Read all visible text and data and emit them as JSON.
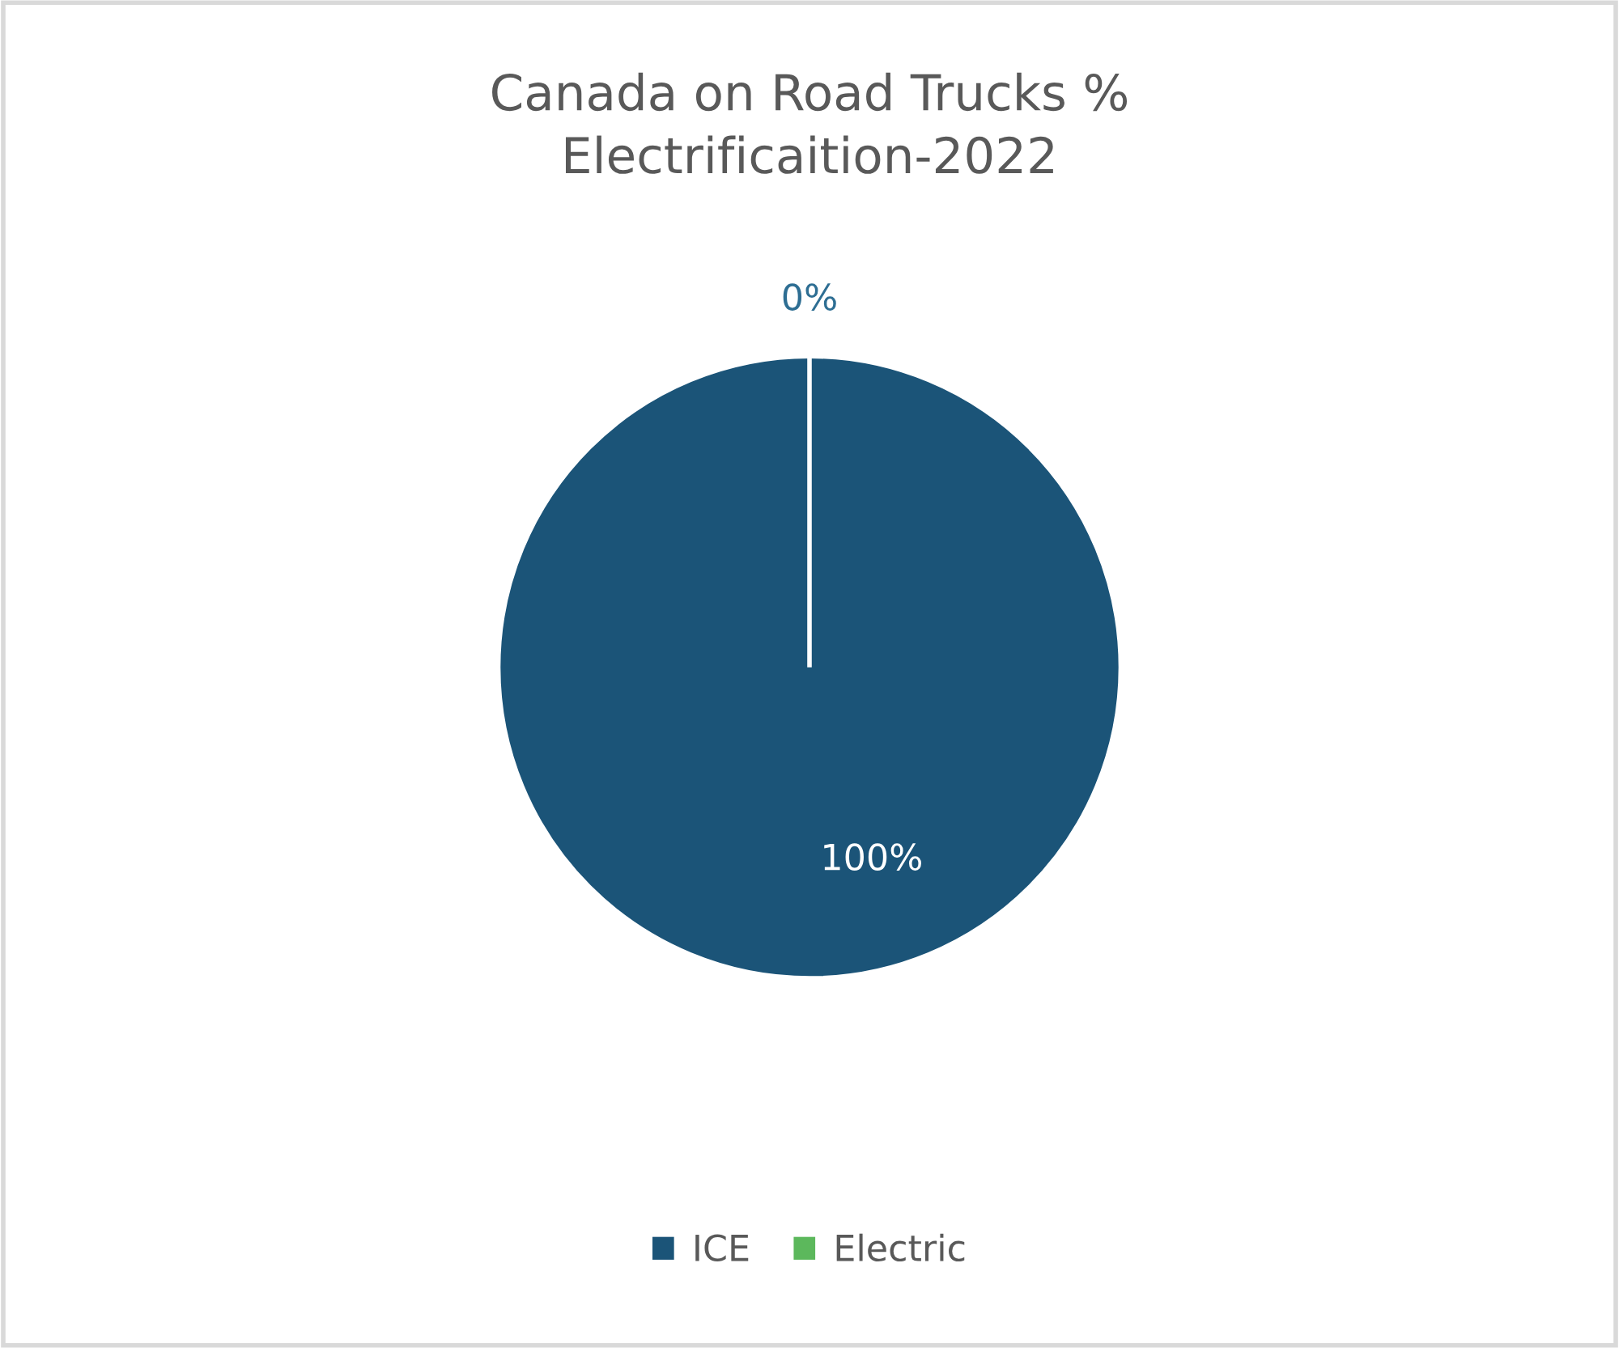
{
  "chart_data": {
    "type": "pie",
    "title": "Canada on Road Trucks %\nElectrificaition-2022",
    "categories": [
      "ICE",
      "Electric"
    ],
    "values": [
      100,
      0
    ],
    "colors": [
      "#1b5478",
      "#5cb85c"
    ],
    "value_labels": [
      "100%",
      "0%"
    ],
    "legend": "bottom"
  }
}
